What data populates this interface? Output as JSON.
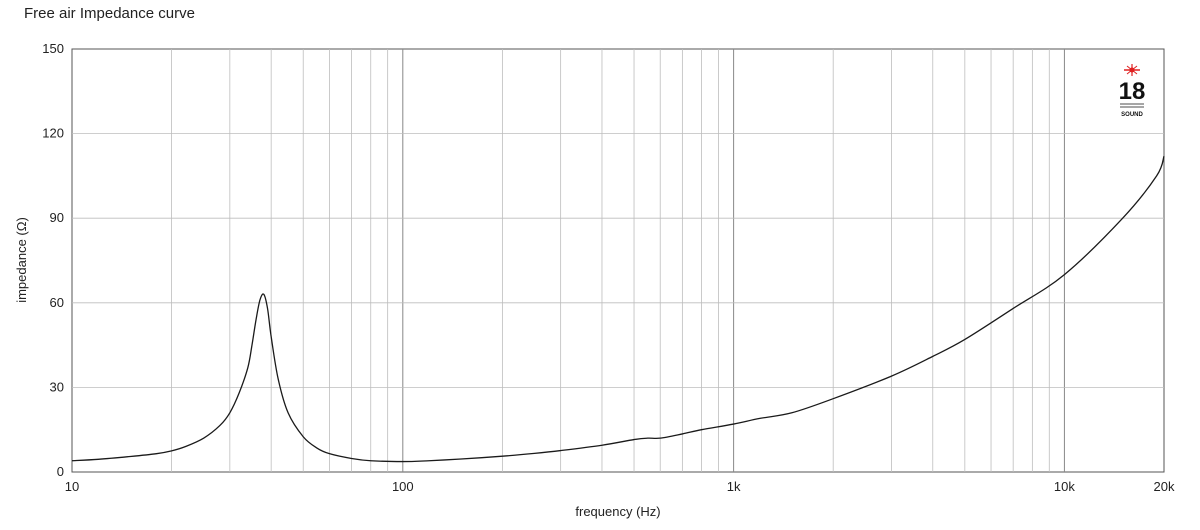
{
  "chart_data": {
    "type": "line",
    "title": "Free air Impedance curve",
    "xlabel": "frequency (Hz)",
    "ylabel": "impedance (Ω)",
    "x_scale": "log",
    "xlim": [
      10,
      20000
    ],
    "ylim": [
      0,
      150
    ],
    "grid": true,
    "x_ticks": [
      {
        "value": 10,
        "label": "10"
      },
      {
        "value": 100,
        "label": "100"
      },
      {
        "value": 1000,
        "label": "1k"
      },
      {
        "value": 10000,
        "label": "10k"
      },
      {
        "value": 20000,
        "label": "20k"
      }
    ],
    "y_ticks": [
      {
        "value": 0,
        "label": "0"
      },
      {
        "value": 30,
        "label": "30"
      },
      {
        "value": 60,
        "label": "60"
      },
      {
        "value": 90,
        "label": "90"
      },
      {
        "value": 120,
        "label": "120"
      },
      {
        "value": 150,
        "label": "150"
      }
    ],
    "series": [
      {
        "color": "#1a1a1a",
        "x": [
          10,
          12,
          15,
          18,
          20,
          22,
          25,
          28,
          30,
          32,
          34,
          35,
          36,
          37,
          38,
          39,
          40,
          42,
          45,
          50,
          55,
          60,
          70,
          80,
          100,
          120,
          150,
          200,
          250,
          300,
          400,
          500,
          550,
          600,
          700,
          800,
          1000,
          1200,
          1500,
          2000,
          3000,
          4000,
          5000,
          7000,
          10000,
          15000,
          19000,
          20000
        ],
        "y": [
          4.0,
          4.5,
          5.5,
          6.5,
          7.5,
          9.0,
          12.0,
          16.5,
          21.0,
          28.0,
          37.0,
          45.0,
          54.0,
          61.0,
          63.0,
          58.0,
          48.0,
          33.0,
          21.0,
          12.5,
          8.5,
          6.5,
          4.8,
          4.0,
          3.7,
          4.0,
          4.6,
          5.6,
          6.6,
          7.6,
          9.5,
          11.5,
          12.0,
          12.0,
          13.5,
          15.0,
          17.0,
          19.0,
          21.0,
          26.0,
          34.0,
          41.0,
          47.0,
          58.0,
          70.0,
          90.0,
          105.0,
          112.0
        ]
      }
    ]
  },
  "logo": {
    "text": "18",
    "subtext": "SOUND",
    "accent_color": "#e02020"
  }
}
